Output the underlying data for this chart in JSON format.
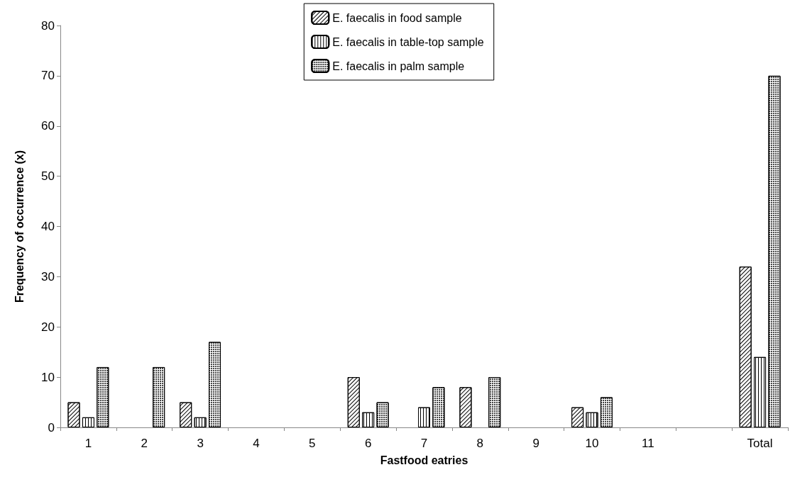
{
  "chart_data": {
    "type": "bar",
    "xlabel": "Fastfood eatries",
    "ylabel": "Frequency of occurrence (x)",
    "categories": [
      "1",
      "2",
      "3",
      "4",
      "5",
      "6",
      "7",
      "8",
      "9",
      "10",
      "11",
      null,
      "Total"
    ],
    "series": [
      {
        "name": "E. faecalis in food sample",
        "color": "#ffffff",
        "values": [
          5,
          0,
          5,
          0,
          0,
          10,
          0,
          8,
          0,
          4,
          0,
          0,
          32
        ]
      },
      {
        "name": "E. faecalis in table-top sample",
        "color": "#ffffff",
        "values": [
          2,
          0,
          2,
          0,
          0,
          3,
          4,
          0,
          0,
          3,
          0,
          0,
          14
        ]
      },
      {
        "name": "E. faecalis in palm sample",
        "color": "#ffffff",
        "values": [
          12,
          12,
          17,
          0,
          0,
          5,
          8,
          10,
          0,
          6,
          0,
          0,
          70
        ]
      }
    ],
    "ylim": [
      0,
      80
    ],
    "yticks": [
      0,
      10,
      20,
      30,
      40,
      50,
      60,
      70,
      80
    ],
    "grid": false,
    "legend": "top"
  }
}
